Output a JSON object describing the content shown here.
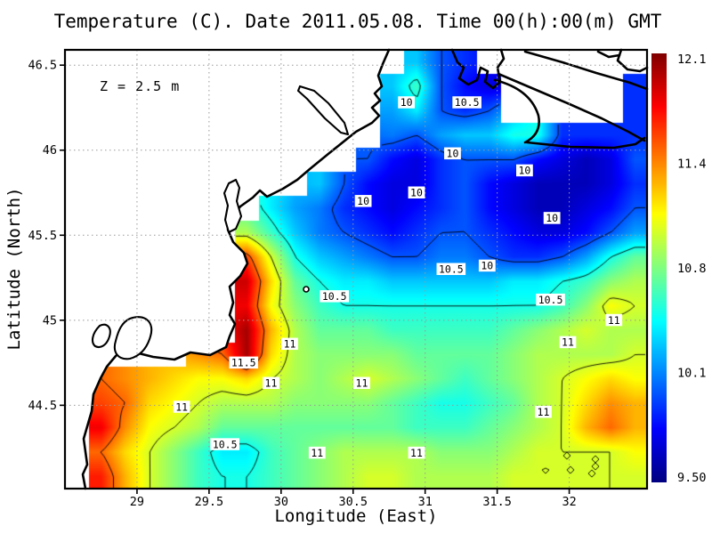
{
  "title": "Temperature (C). Date 2011.05.08. Time 00(h):00(m) GMT",
  "annotation": "Z = 2.5 m",
  "chart_data": {
    "type": "heatmap",
    "title": "Temperature (C). Date 2011.05.08. Time 00(h):00(m) GMT",
    "xlabel": "Longitude (East)",
    "ylabel": "Latitude (North)",
    "x_range": [
      28.5,
      32.54
    ],
    "y_range": [
      44.01,
      46.59
    ],
    "x_ticks": [
      "29",
      "29.5",
      "30",
      "30.5",
      "31",
      "31.5",
      "32"
    ],
    "y_ticks": [
      "44.5",
      "45",
      "45.5",
      "46",
      "46.5"
    ],
    "grid_on": true,
    "colormap": "jet",
    "vmin": 9.45,
    "vmax": 12.1,
    "colorbar_ticks": [
      "12.1",
      "11.4",
      "10.8",
      "10.1",
      "9.50"
    ],
    "contour_levels": [
      10,
      10.5,
      11,
      11.5
    ],
    "contour_labels": [
      {
        "text": "10",
        "lon": 30.87,
        "lat": 46.28
      },
      {
        "text": "10.5",
        "lon": 31.29,
        "lat": 46.28
      },
      {
        "text": "10",
        "lon": 31.19,
        "lat": 45.98
      },
      {
        "text": "10",
        "lon": 31.69,
        "lat": 45.88
      },
      {
        "text": "10",
        "lon": 30.94,
        "lat": 45.75
      },
      {
        "text": "10",
        "lon": 30.57,
        "lat": 45.7
      },
      {
        "text": "10",
        "lon": 31.88,
        "lat": 45.6
      },
      {
        "text": "10",
        "lon": 31.43,
        "lat": 45.32
      },
      {
        "text": "10.5",
        "lon": 31.18,
        "lat": 45.3
      },
      {
        "text": "10.5",
        "lon": 30.37,
        "lat": 45.14
      },
      {
        "text": "10.5",
        "lon": 31.87,
        "lat": 45.12
      },
      {
        "text": "11",
        "lon": 32.31,
        "lat": 45.0
      },
      {
        "text": "11",
        "lon": 30.06,
        "lat": 44.86
      },
      {
        "text": "11",
        "lon": 31.99,
        "lat": 44.87
      },
      {
        "text": "11.5",
        "lon": 29.74,
        "lat": 44.75
      },
      {
        "text": "11",
        "lon": 29.93,
        "lat": 44.63
      },
      {
        "text": "11",
        "lon": 30.56,
        "lat": 44.63
      },
      {
        "text": "11",
        "lon": 29.31,
        "lat": 44.49
      },
      {
        "text": "11",
        "lon": 31.82,
        "lat": 44.46
      },
      {
        "text": "10.5",
        "lon": 29.61,
        "lat": 44.27
      },
      {
        "text": "11",
        "lon": 30.25,
        "lat": 44.22
      },
      {
        "text": "11",
        "lon": 30.94,
        "lat": 44.22
      }
    ],
    "temperature_grid": {
      "cols": 24,
      "rows": 18,
      "lon_start": 28.5,
      "lon_end": 32.54,
      "lat_start": 46.59,
      "lat_end": 44.01,
      "values": [
        [
          null,
          null,
          null,
          null,
          null,
          null,
          null,
          null,
          null,
          null,
          null,
          null,
          null,
          null,
          10.3,
          10.0,
          9.9,
          null,
          null,
          null,
          null,
          null,
          null,
          null
        ],
        [
          null,
          null,
          null,
          null,
          null,
          null,
          null,
          null,
          null,
          null,
          null,
          null,
          null,
          10.3,
          10.6,
          10.0,
          9.8,
          9.7,
          null,
          null,
          null,
          null,
          null,
          9.9
        ],
        [
          null,
          null,
          null,
          null,
          null,
          null,
          null,
          null,
          null,
          null,
          null,
          null,
          null,
          10.2,
          10.4,
          10.0,
          9.9,
          10.0,
          null,
          null,
          null,
          null,
          null,
          9.9
        ],
        [
          null,
          null,
          null,
          null,
          null,
          null,
          null,
          null,
          null,
          null,
          null,
          null,
          null,
          10.1,
          10.0,
          10.2,
          10.3,
          10.3,
          10.5,
          10.5,
          9.9,
          9.9,
          9.9,
          9.9
        ],
        [
          null,
          null,
          null,
          null,
          null,
          null,
          null,
          null,
          null,
          null,
          null,
          null,
          10.0,
          9.8,
          9.7,
          9.9,
          10.0,
          10.0,
          10.0,
          9.8,
          9.7,
          9.6,
          9.7,
          10.0
        ],
        [
          null,
          null,
          null,
          null,
          null,
          null,
          null,
          null,
          null,
          null,
          10.3,
          10.0,
          9.8,
          9.7,
          9.7,
          9.9,
          10.0,
          9.8,
          9.7,
          9.6,
          9.6,
          9.6,
          9.7,
          9.9
        ],
        [
          null,
          null,
          null,
          null,
          null,
          null,
          null,
          null,
          10.4,
          10.2,
          10.1,
          9.9,
          9.8,
          9.7,
          9.8,
          9.9,
          10.0,
          9.8,
          9.7,
          9.6,
          9.6,
          9.7,
          9.8,
          10.0
        ],
        [
          null,
          null,
          null,
          null,
          null,
          null,
          null,
          10.9,
          10.6,
          10.3,
          10.1,
          10.0,
          9.9,
          9.8,
          9.9,
          10.0,
          10.0,
          9.9,
          9.8,
          9.7,
          9.7,
          9.8,
          10.0,
          10.2
        ],
        [
          null,
          null,
          null,
          null,
          null,
          null,
          null,
          11.6,
          11.0,
          10.5,
          10.3,
          10.2,
          10.1,
          10.0,
          10.0,
          10.1,
          10.1,
          10.0,
          9.9,
          9.9,
          10.0,
          10.2,
          10.5,
          10.7
        ],
        [
          null,
          null,
          null,
          null,
          null,
          null,
          null,
          11.9,
          11.2,
          10.7,
          10.5,
          10.4,
          10.4,
          10.3,
          10.3,
          10.3,
          10.3,
          10.3,
          10.4,
          10.4,
          10.5,
          10.6,
          10.8,
          10.9
        ],
        [
          null,
          null,
          null,
          null,
          null,
          null,
          null,
          11.8,
          11.1,
          10.8,
          10.6,
          10.5,
          10.5,
          10.5,
          10.5,
          10.5,
          10.5,
          10.5,
          10.5,
          10.5,
          10.6,
          10.8,
          11.1,
          11.0
        ],
        [
          null,
          null,
          null,
          null,
          null,
          null,
          null,
          12.0,
          11.3,
          10.9,
          10.7,
          10.7,
          10.7,
          10.6,
          10.6,
          10.6,
          10.6,
          10.6,
          10.7,
          10.8,
          10.9,
          11.0,
          10.9,
          10.9
        ],
        [
          null,
          null,
          null,
          null,
          null,
          11.4,
          11.5,
          12.0,
          11.2,
          10.9,
          10.8,
          10.8,
          10.8,
          10.8,
          10.7,
          10.7,
          10.7,
          10.7,
          10.8,
          10.9,
          10.9,
          10.9,
          10.9,
          11.0
        ],
        [
          null,
          11.5,
          11.4,
          11.3,
          11.2,
          11.1,
          11.1,
          11.2,
          11.0,
          10.9,
          10.8,
          10.9,
          11.0,
          10.9,
          10.8,
          10.7,
          10.6,
          10.7,
          10.8,
          10.9,
          11.0,
          11.1,
          11.2,
          11.1
        ],
        [
          null,
          11.6,
          11.5,
          11.2,
          11.1,
          11.0,
          10.9,
          10.9,
          10.9,
          10.8,
          10.8,
          10.8,
          10.8,
          10.7,
          10.6,
          10.5,
          10.5,
          10.6,
          10.7,
          10.9,
          11.0,
          11.2,
          11.4,
          11.3
        ],
        [
          null,
          11.8,
          11.4,
          11.1,
          11.0,
          10.9,
          10.7,
          10.7,
          10.7,
          10.7,
          10.7,
          10.7,
          10.7,
          10.7,
          10.6,
          10.6,
          10.6,
          10.7,
          10.8,
          10.9,
          11.0,
          11.3,
          11.5,
          11.3
        ],
        [
          null,
          11.5,
          11.2,
          11.0,
          10.8,
          10.6,
          10.4,
          10.4,
          10.6,
          10.7,
          10.8,
          10.9,
          10.9,
          10.9,
          10.9,
          10.8,
          10.8,
          10.8,
          10.9,
          11.0,
          11.0,
          11.0,
          11.0,
          11.1
        ],
        [
          null,
          11.7,
          11.3,
          11.0,
          10.8,
          10.6,
          10.5,
          10.5,
          10.6,
          10.7,
          10.8,
          10.9,
          11.0,
          11.0,
          10.9,
          10.9,
          10.9,
          10.9,
          11.0,
          11.0,
          11.0,
          11.0,
          11.0,
          11.0
        ]
      ]
    }
  }
}
